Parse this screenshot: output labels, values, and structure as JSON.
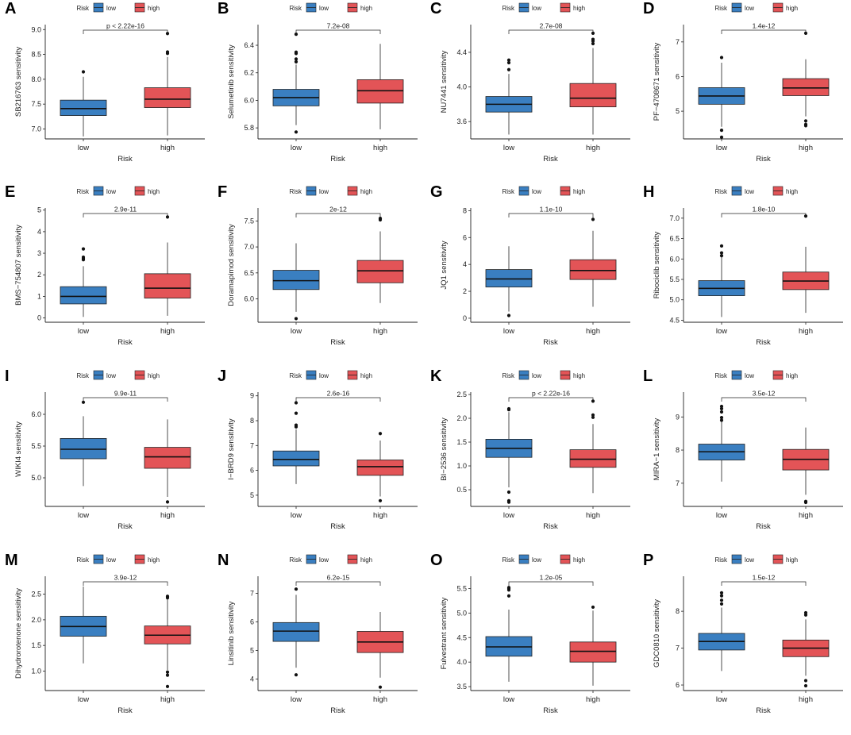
{
  "colors": {
    "low": "#3a7fc1",
    "high": "#e35457",
    "axis": "#222222"
  },
  "legend": {
    "title": "Risk",
    "items": [
      "low",
      "high"
    ]
  },
  "chart_data": [
    {
      "type": "box",
      "label": "A",
      "ylabel": "SB216763 sensitivity",
      "xlabel": "Risk",
      "categories": [
        "low",
        "high"
      ],
      "ylim": [
        6.8,
        9.1
      ],
      "yticks": [
        7.0,
        7.5,
        8.0,
        8.5,
        9.0
      ],
      "yticklabels": [
        "7.0",
        "7.5",
        "8.0",
        "8.5",
        "9.0"
      ],
      "pvalue": "p < 2.22e-16",
      "boxes": [
        {
          "min": 6.85,
          "q1": 7.27,
          "median": 7.41,
          "q3": 7.58,
          "max": 8.05,
          "outliers": [
            8.15
          ]
        },
        {
          "min": 6.87,
          "q1": 7.43,
          "median": 7.6,
          "q3": 7.83,
          "max": 8.45,
          "outliers": [
            8.52,
            8.55,
            8.92
          ]
        }
      ]
    },
    {
      "type": "box",
      "label": "B",
      "ylabel": "Selumetinib sensitivity",
      "xlabel": "Risk",
      "categories": [
        "low",
        "high"
      ],
      "ylim": [
        5.72,
        6.55
      ],
      "yticks": [
        5.8,
        6.0,
        6.2,
        6.4
      ],
      "yticklabels": [
        "5.8",
        "6.0",
        "6.2",
        "6.4"
      ],
      "pvalue": "7.2e-08",
      "boxes": [
        {
          "min": 5.82,
          "q1": 5.96,
          "median": 6.02,
          "q3": 6.08,
          "max": 6.26,
          "outliers": [
            6.28,
            6.3,
            6.34,
            6.35,
            6.48,
            5.77
          ]
        },
        {
          "min": 5.79,
          "q1": 5.98,
          "median": 6.07,
          "q3": 6.15,
          "max": 6.41,
          "outliers": []
        }
      ]
    },
    {
      "type": "box",
      "label": "C",
      "ylabel": "NU7441 sensitivity",
      "xlabel": "Risk",
      "categories": [
        "low",
        "high"
      ],
      "ylim": [
        3.4,
        4.72
      ],
      "yticks": [
        3.6,
        4.0,
        4.4
      ],
      "yticklabels": [
        "3.6",
        "4.0",
        "4.4"
      ],
      "pvalue": "2.7e-08",
      "boxes": [
        {
          "min": 3.45,
          "q1": 3.71,
          "median": 3.8,
          "q3": 3.89,
          "max": 4.15,
          "outliers": [
            4.2,
            4.28,
            4.31
          ]
        },
        {
          "min": 3.45,
          "q1": 3.77,
          "median": 3.87,
          "q3": 4.04,
          "max": 4.45,
          "outliers": [
            4.5,
            4.53,
            4.55,
            4.62
          ]
        }
      ]
    },
    {
      "type": "box",
      "label": "D",
      "ylabel": "PF−4708671 sensitivity",
      "xlabel": "Risk",
      "categories": [
        "low",
        "high"
      ],
      "ylim": [
        4.2,
        7.5
      ],
      "yticks": [
        5,
        6,
        7
      ],
      "yticklabels": [
        "5",
        "6",
        "7"
      ],
      "pvalue": "1.4e-12",
      "boxes": [
        {
          "min": 4.55,
          "q1": 5.2,
          "median": 5.44,
          "q3": 5.68,
          "max": 6.4,
          "outliers": [
            6.55,
            4.45,
            4.25
          ]
        },
        {
          "min": 4.85,
          "q1": 5.45,
          "median": 5.67,
          "q3": 5.94,
          "max": 6.5,
          "outliers": [
            7.25,
            4.72,
            4.62,
            4.58
          ]
        }
      ]
    },
    {
      "type": "box",
      "label": "E",
      "ylabel": "BMS−754807 sensitivity",
      "xlabel": "Risk",
      "categories": [
        "low",
        "high"
      ],
      "ylim": [
        -0.2,
        5.1
      ],
      "yticks": [
        0,
        1,
        2,
        3,
        4,
        5
      ],
      "yticklabels": [
        "0",
        "1",
        "2",
        "3",
        "4",
        "5"
      ],
      "pvalue": "2.9e-11",
      "boxes": [
        {
          "min": 0.05,
          "q1": 0.65,
          "median": 1.0,
          "q3": 1.45,
          "max": 2.4,
          "outliers": [
            2.7,
            2.75,
            2.82,
            3.2
          ]
        },
        {
          "min": 0.1,
          "q1": 0.92,
          "median": 1.38,
          "q3": 2.05,
          "max": 3.5,
          "outliers": [
            4.68
          ]
        }
      ]
    },
    {
      "type": "box",
      "label": "F",
      "ylabel": "Doramapimod sensitivity",
      "xlabel": "Risk",
      "categories": [
        "low",
        "high"
      ],
      "ylim": [
        5.55,
        7.75
      ],
      "yticks": [
        6.0,
        6.5,
        7.0,
        7.5
      ],
      "yticklabels": [
        "6.0",
        "6.5",
        "7.0",
        "7.5"
      ],
      "pvalue": "2e-12",
      "boxes": [
        {
          "min": 5.75,
          "q1": 6.18,
          "median": 6.35,
          "q3": 6.55,
          "max": 7.07,
          "outliers": [
            5.62
          ]
        },
        {
          "min": 5.92,
          "q1": 6.31,
          "median": 6.54,
          "q3": 6.74,
          "max": 7.3,
          "outliers": [
            7.52,
            7.55
          ]
        }
      ]
    },
    {
      "type": "box",
      "label": "G",
      "ylabel": "JQ1 sensitivity",
      "xlabel": "Risk",
      "categories": [
        "low",
        "high"
      ],
      "ylim": [
        -0.3,
        8.2
      ],
      "yticks": [
        0,
        2,
        4,
        6,
        8
      ],
      "yticklabels": [
        "0",
        "2",
        "4",
        "6",
        "8"
      ],
      "pvalue": "1.1e-10",
      "boxes": [
        {
          "min": 0.5,
          "q1": 2.32,
          "median": 2.92,
          "q3": 3.62,
          "max": 5.35,
          "outliers": [
            0.2
          ]
        },
        {
          "min": 0.85,
          "q1": 2.88,
          "median": 3.55,
          "q3": 4.35,
          "max": 6.5,
          "outliers": [
            7.35
          ]
        }
      ]
    },
    {
      "type": "box",
      "label": "H",
      "ylabel": "Ribociclib sensitivity",
      "xlabel": "Risk",
      "categories": [
        "low",
        "high"
      ],
      "ylim": [
        4.45,
        7.25
      ],
      "yticks": [
        4.5,
        5.0,
        5.5,
        6.0,
        6.5,
        7.0
      ],
      "yticklabels": [
        "4.5",
        "5.0",
        "5.5",
        "6.0",
        "6.5",
        "7.0"
      ],
      "pvalue": "1.8e-10",
      "boxes": [
        {
          "min": 4.58,
          "q1": 5.1,
          "median": 5.28,
          "q3": 5.47,
          "max": 6.05,
          "outliers": [
            6.08,
            6.15,
            6.32
          ]
        },
        {
          "min": 4.68,
          "q1": 5.25,
          "median": 5.46,
          "q3": 5.68,
          "max": 6.3,
          "outliers": [
            7.05
          ]
        }
      ]
    },
    {
      "type": "box",
      "label": "I",
      "ylabel": "WIKI4 sensitivity",
      "xlabel": "Risk",
      "categories": [
        "low",
        "high"
      ],
      "ylim": [
        4.55,
        6.35
      ],
      "yticks": [
        5.0,
        5.5,
        6.0
      ],
      "yticklabels": [
        "5.0",
        "5.5",
        "6.0"
      ],
      "pvalue": "9.9e-11",
      "boxes": [
        {
          "min": 4.87,
          "q1": 5.3,
          "median": 5.45,
          "q3": 5.62,
          "max": 5.97,
          "outliers": [
            6.19
          ]
        },
        {
          "min": 4.7,
          "q1": 5.15,
          "median": 5.33,
          "q3": 5.48,
          "max": 5.92,
          "outliers": [
            4.62
          ]
        }
      ]
    },
    {
      "type": "box",
      "label": "J",
      "ylabel": "I−BRD9 sensitivity",
      "xlabel": "Risk",
      "categories": [
        "low",
        "high"
      ],
      "ylim": [
        4.55,
        9.15
      ],
      "yticks": [
        5,
        6,
        7,
        8,
        9
      ],
      "yticklabels": [
        "5",
        "6",
        "7",
        "8",
        "9"
      ],
      "pvalue": "2.6e-16",
      "boxes": [
        {
          "min": 5.45,
          "q1": 6.18,
          "median": 6.44,
          "q3": 6.78,
          "max": 7.65,
          "outliers": [
            7.75,
            7.82,
            8.3,
            8.72
          ]
        },
        {
          "min": 4.95,
          "q1": 5.8,
          "median": 6.15,
          "q3": 6.42,
          "max": 7.2,
          "outliers": [
            7.48,
            4.78
          ]
        }
      ]
    },
    {
      "type": "box",
      "label": "K",
      "ylabel": "BI−2536 sensitivity",
      "xlabel": "Risk",
      "categories": [
        "low",
        "high"
      ],
      "ylim": [
        0.15,
        2.55
      ],
      "yticks": [
        0.5,
        1.0,
        1.5,
        2.0,
        2.5
      ],
      "yticklabels": [
        "0.5",
        "1.0",
        "1.5",
        "2.0",
        "2.5"
      ],
      "pvalue": "p < 2.22e-16",
      "boxes": [
        {
          "min": 0.55,
          "q1": 1.18,
          "median": 1.37,
          "q3": 1.56,
          "max": 2.13,
          "outliers": [
            2.18,
            2.2,
            0.45,
            0.27,
            0.24
          ]
        },
        {
          "min": 0.43,
          "q1": 0.97,
          "median": 1.14,
          "q3": 1.34,
          "max": 1.88,
          "outliers": [
            2.02,
            2.07,
            2.36
          ]
        }
      ]
    },
    {
      "type": "box",
      "label": "L",
      "ylabel": "MIRA−1 sensitivity",
      "xlabel": "Risk",
      "categories": [
        "low",
        "high"
      ],
      "ylim": [
        6.3,
        9.75
      ],
      "yticks": [
        7,
        8,
        9
      ],
      "yticklabels": [
        "7",
        "8",
        "9"
      ],
      "pvalue": "3.5e-12",
      "boxes": [
        {
          "min": 7.05,
          "q1": 7.7,
          "median": 7.95,
          "q3": 8.18,
          "max": 8.85,
          "outliers": [
            8.9,
            8.98,
            9.15,
            9.25,
            9.32
          ]
        },
        {
          "min": 6.65,
          "q1": 7.4,
          "median": 7.72,
          "q3": 8.02,
          "max": 8.68,
          "outliers": [
            6.42,
            6.45
          ]
        }
      ]
    },
    {
      "type": "box",
      "label": "M",
      "ylabel": "Dihydrorotenone sensitivity",
      "xlabel": "Risk",
      "categories": [
        "low",
        "high"
      ],
      "ylim": [
        0.62,
        2.85
      ],
      "yticks": [
        1.0,
        1.5,
        2.0,
        2.5
      ],
      "yticklabels": [
        "1.0",
        "1.5",
        "2.0",
        "2.5"
      ],
      "pvalue": "3.9e-12",
      "boxes": [
        {
          "min": 1.15,
          "q1": 1.68,
          "median": 1.87,
          "q3": 2.07,
          "max": 2.65,
          "outliers": []
        },
        {
          "min": 1.02,
          "q1": 1.53,
          "median": 1.7,
          "q3": 1.88,
          "max": 2.4,
          "outliers": [
            2.43,
            2.46,
            0.98,
            0.92,
            0.7
          ]
        }
      ]
    },
    {
      "type": "box",
      "label": "N",
      "ylabel": "Linsitinib sensitivity",
      "xlabel": "Risk",
      "categories": [
        "low",
        "high"
      ],
      "ylim": [
        3.6,
        7.6
      ],
      "yticks": [
        4,
        5,
        6,
        7
      ],
      "yticklabels": [
        "4",
        "5",
        "6",
        "7"
      ],
      "pvalue": "6.2e-15",
      "boxes": [
        {
          "min": 4.4,
          "q1": 5.32,
          "median": 5.68,
          "q3": 5.98,
          "max": 6.95,
          "outliers": [
            7.15,
            4.15
          ]
        },
        {
          "min": 4.05,
          "q1": 4.93,
          "median": 5.3,
          "q3": 5.67,
          "max": 6.35,
          "outliers": [
            3.72
          ]
        }
      ]
    },
    {
      "type": "box",
      "label": "O",
      "ylabel": "Fulvestrant sensitivity",
      "xlabel": "Risk",
      "categories": [
        "low",
        "high"
      ],
      "ylim": [
        3.42,
        5.75
      ],
      "yticks": [
        3.5,
        4.0,
        4.5,
        5.0,
        5.5
      ],
      "yticklabels": [
        "3.5",
        "4.0",
        "4.5",
        "5.0",
        "5.5"
      ],
      "pvalue": "1.2e-05",
      "boxes": [
        {
          "min": 3.6,
          "q1": 4.12,
          "median": 4.31,
          "q3": 4.52,
          "max": 5.07,
          "outliers": [
            5.35,
            5.47,
            5.5,
            5.52
          ]
        },
        {
          "min": 3.52,
          "q1": 4.0,
          "median": 4.22,
          "q3": 4.41,
          "max": 5.05,
          "outliers": [
            5.12
          ]
        }
      ]
    },
    {
      "type": "box",
      "label": "P",
      "ylabel": "GDC0810 sensitivity",
      "xlabel": "Risk",
      "categories": [
        "low",
        "high"
      ],
      "ylim": [
        5.85,
        8.95
      ],
      "yticks": [
        6,
        7,
        8
      ],
      "yticklabels": [
        "6",
        "7",
        "8"
      ],
      "pvalue": "1.5e-12",
      "boxes": [
        {
          "min": 6.38,
          "q1": 6.95,
          "median": 7.18,
          "q3": 7.4,
          "max": 8.1,
          "outliers": [
            8.2,
            8.3,
            8.42,
            8.5
          ]
        },
        {
          "min": 6.25,
          "q1": 6.77,
          "median": 7.0,
          "q3": 7.22,
          "max": 7.78,
          "outliers": [
            7.9,
            7.96,
            6.12,
            5.98
          ]
        }
      ]
    }
  ]
}
